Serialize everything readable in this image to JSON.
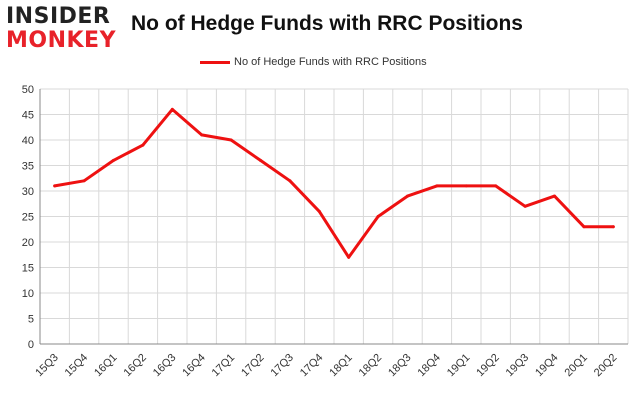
{
  "logo": {
    "line1": "INSIDER",
    "line2": "MONKEY"
  },
  "colors": {
    "series": "#ee1111",
    "grid": "#d9d9d9",
    "axis": "#888888",
    "logo_red": "#e8222a"
  },
  "chart_data": {
    "type": "line",
    "title": "No of Hedge Funds with RRC Positions",
    "xlabel": "",
    "ylabel": "",
    "legend_position": "top-center",
    "grid": true,
    "ylim": [
      0,
      50
    ],
    "yticks": [
      0,
      5,
      10,
      15,
      20,
      25,
      30,
      35,
      40,
      45,
      50
    ],
    "categories": [
      "15Q3",
      "15Q4",
      "16Q1",
      "16Q2",
      "16Q3",
      "16Q4",
      "17Q1",
      "17Q2",
      "17Q3",
      "17Q4",
      "18Q1",
      "18Q2",
      "18Q3",
      "18Q4",
      "19Q1",
      "19Q2",
      "19Q3",
      "19Q4",
      "20Q1",
      "20Q2"
    ],
    "series": [
      {
        "name": "No of Hedge Funds with RRC Positions",
        "values": [
          31,
          32,
          36,
          39,
          46,
          41,
          40,
          36,
          32,
          26,
          17,
          25,
          29,
          31,
          31,
          31,
          27,
          29,
          23,
          23
        ]
      }
    ]
  }
}
